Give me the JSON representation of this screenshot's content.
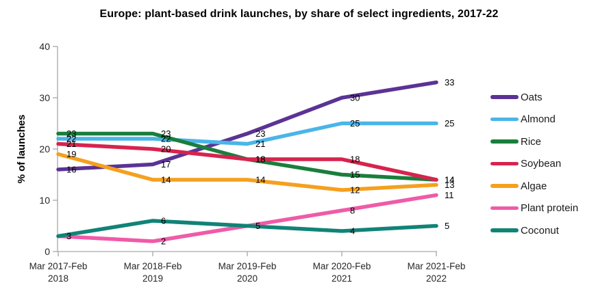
{
  "title": "Europe: plant-based drink launches, by share of select ingredients, 2017-22",
  "chart_data": {
    "type": "line",
    "title": "Europe: plant-based drink launches, by share of select ingredients, 2017-22",
    "xlabel": "",
    "ylabel": "% of launches",
    "ylim": [
      0,
      40
    ],
    "yticks": [
      0,
      10,
      20,
      30,
      40
    ],
    "grid": false,
    "legend_position": "right",
    "categories": [
      "Mar 2017-Feb 2018",
      "Mar 2018-Feb 2019",
      "Mar 2019-Feb 2020",
      "Mar 2020-Feb 2021",
      "Mar 2021-Feb 2022"
    ],
    "series": [
      {
        "name": "Oats",
        "color": "#5B3394",
        "values": [
          16,
          17,
          23,
          30,
          33
        ],
        "labels": [
          16,
          17,
          23,
          30,
          33
        ]
      },
      {
        "name": "Almond",
        "color": "#4AB5E8",
        "values": [
          22,
          22,
          21,
          25,
          25
        ],
        "labels": [
          22,
          22,
          21,
          25,
          25
        ]
      },
      {
        "name": "Rice",
        "color": "#1A7E3C",
        "values": [
          23,
          23,
          18,
          15,
          14
        ],
        "labels": [
          23,
          23,
          18,
          15,
          14
        ]
      },
      {
        "name": "Soybean",
        "color": "#D7234E",
        "values": [
          21,
          20,
          18,
          18,
          14
        ],
        "labels": [
          21,
          20,
          18,
          18,
          14
        ]
      },
      {
        "name": "Algae",
        "color": "#F5A01E",
        "values": [
          19,
          14,
          14,
          12,
          13
        ],
        "labels": [
          19,
          14,
          14,
          12,
          13
        ]
      },
      {
        "name": "Plant protein",
        "color": "#EF5BA8",
        "values": [
          3,
          2,
          5,
          8,
          11
        ],
        "labels": [
          null,
          2,
          null,
          8,
          11
        ]
      },
      {
        "name": "Coconut",
        "color": "#118377",
        "values": [
          3,
          6,
          5,
          4,
          5
        ],
        "labels": [
          3,
          6,
          5,
          4,
          5
        ]
      }
    ],
    "axis_color": "#A6A6A6",
    "tick_label_color": "#262626",
    "data_label_color": "#000000"
  }
}
